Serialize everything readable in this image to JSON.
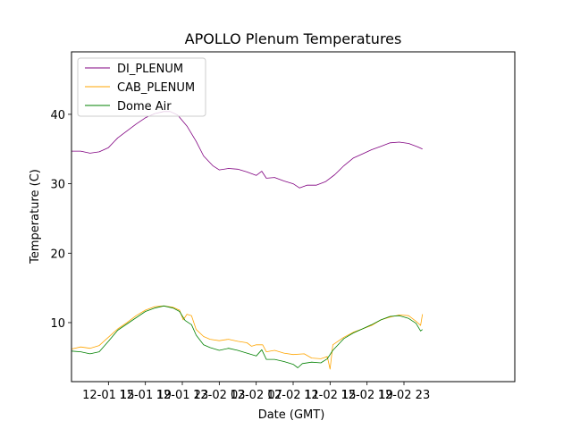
{
  "chart_data": {
    "type": "line",
    "title": "APOLLO Plenum Temperatures",
    "xlabel": "Date (GMT)",
    "ylabel": "Temperature (C)",
    "xlim": [
      11.0,
      59.0
    ],
    "ylim": [
      1.5,
      49.0
    ],
    "x_unit": "hours since 2021-12-01 00:00 GMT",
    "xticks": [
      {
        "value": 15,
        "label": "12-01 15"
      },
      {
        "value": 19,
        "label": "12-01 19"
      },
      {
        "value": 23,
        "label": "12-01 23"
      },
      {
        "value": 27,
        "label": "12-02 03"
      },
      {
        "value": 31,
        "label": "12-02 07"
      },
      {
        "value": 35,
        "label": "12-02 11"
      },
      {
        "value": 39,
        "label": "12-02 15"
      },
      {
        "value": 43,
        "label": "12-02 19"
      },
      {
        "value": 47,
        "label": "12-02 23"
      }
    ],
    "yticks": [
      {
        "value": 10,
        "label": "10"
      },
      {
        "value": 20,
        "label": "20"
      },
      {
        "value": 30,
        "label": "30"
      },
      {
        "value": 40,
        "label": "40"
      }
    ],
    "grid": false,
    "legend": {
      "position": "top-left"
    },
    "series": [
      {
        "name": "DI_PLENUM",
        "color": "#800080",
        "points": [
          [
            11,
            34.7
          ],
          [
            12,
            34.7
          ],
          [
            13,
            34.4
          ],
          [
            14,
            34.6
          ],
          [
            15,
            35.2
          ],
          [
            16,
            36.6
          ],
          [
            17,
            37.6
          ],
          [
            18,
            38.6
          ],
          [
            19,
            39.5
          ],
          [
            20,
            40.1
          ],
          [
            21,
            40.4
          ],
          [
            21.7,
            40.4
          ],
          [
            22.5,
            39.9
          ],
          [
            23.5,
            38.3
          ],
          [
            24.5,
            36.1
          ],
          [
            25.3,
            34.0
          ],
          [
            26.3,
            32.6
          ],
          [
            27,
            32.0
          ],
          [
            28,
            32.2
          ],
          [
            29,
            32.1
          ],
          [
            30,
            31.7
          ],
          [
            31,
            31.2
          ],
          [
            31.6,
            31.8
          ],
          [
            32.1,
            30.8
          ],
          [
            33,
            30.9
          ],
          [
            34,
            30.4
          ],
          [
            35,
            30.0
          ],
          [
            35.7,
            29.4
          ],
          [
            36.5,
            29.8
          ],
          [
            37.5,
            29.8
          ],
          [
            38.5,
            30.3
          ],
          [
            39.5,
            31.3
          ],
          [
            40.5,
            32.6
          ],
          [
            41.5,
            33.7
          ],
          [
            42.5,
            34.3
          ],
          [
            43.5,
            34.9
          ],
          [
            44.5,
            35.4
          ],
          [
            45.5,
            35.9
          ],
          [
            46.5,
            36.0
          ],
          [
            47.5,
            35.8
          ],
          [
            48.5,
            35.3
          ],
          [
            49,
            35.0
          ]
        ]
      },
      {
        "name": "CAB_PLENUM",
        "color": "#ffa500",
        "points": [
          [
            11,
            6.2
          ],
          [
            12,
            6.5
          ],
          [
            13,
            6.3
          ],
          [
            14,
            6.7
          ],
          [
            15,
            7.9
          ],
          [
            16,
            9.1
          ],
          [
            17,
            10.0
          ],
          [
            18,
            11.0
          ],
          [
            19,
            11.8
          ],
          [
            20,
            12.3
          ],
          [
            21,
            12.4
          ],
          [
            22,
            12.2
          ],
          [
            22.7,
            11.8
          ],
          [
            23.1,
            10.4
          ],
          [
            23.5,
            11.2
          ],
          [
            24,
            11.0
          ],
          [
            24.5,
            9.0
          ],
          [
            25.3,
            8.0
          ],
          [
            26,
            7.6
          ],
          [
            27,
            7.4
          ],
          [
            28,
            7.6
          ],
          [
            29,
            7.3
          ],
          [
            30,
            7.1
          ],
          [
            30.5,
            6.6
          ],
          [
            31,
            6.8
          ],
          [
            31.7,
            6.8
          ],
          [
            32.1,
            5.8
          ],
          [
            33,
            6.0
          ],
          [
            34,
            5.6
          ],
          [
            35,
            5.4
          ],
          [
            36.2,
            5.5
          ],
          [
            37,
            4.9
          ],
          [
            38,
            4.8
          ],
          [
            38.7,
            5.1
          ],
          [
            39,
            3.3
          ],
          [
            39.3,
            6.8
          ],
          [
            40.5,
            7.9
          ],
          [
            41.5,
            8.6
          ],
          [
            42.5,
            9.1
          ],
          [
            43.5,
            9.6
          ],
          [
            44.5,
            10.4
          ],
          [
            45.5,
            10.8
          ],
          [
            46.5,
            11.1
          ],
          [
            47.5,
            11.0
          ],
          [
            48.3,
            10.2
          ],
          [
            48.8,
            9.6
          ],
          [
            49,
            11.2
          ]
        ]
      },
      {
        "name": "Dome Air",
        "color": "#008000",
        "points": [
          [
            11,
            5.9
          ],
          [
            12,
            5.8
          ],
          [
            13,
            5.5
          ],
          [
            14,
            5.8
          ],
          [
            15,
            7.3
          ],
          [
            16,
            8.9
          ],
          [
            17,
            9.8
          ],
          [
            18,
            10.7
          ],
          [
            19,
            11.6
          ],
          [
            20,
            12.1
          ],
          [
            21,
            12.4
          ],
          [
            22,
            12.1
          ],
          [
            22.7,
            11.6
          ],
          [
            23.3,
            10.3
          ],
          [
            24,
            9.7
          ],
          [
            24.5,
            8.2
          ],
          [
            25.3,
            6.8
          ],
          [
            26,
            6.4
          ],
          [
            27,
            6.0
          ],
          [
            28,
            6.3
          ],
          [
            29,
            6.0
          ],
          [
            30,
            5.6
          ],
          [
            31,
            5.2
          ],
          [
            31.6,
            6.1
          ],
          [
            32.1,
            4.7
          ],
          [
            33,
            4.7
          ],
          [
            34,
            4.4
          ],
          [
            35,
            4.0
          ],
          [
            35.5,
            3.5
          ],
          [
            36,
            4.1
          ],
          [
            37,
            4.3
          ],
          [
            38,
            4.2
          ],
          [
            38.7,
            4.8
          ],
          [
            39.3,
            6.0
          ],
          [
            40.5,
            7.7
          ],
          [
            41.5,
            8.5
          ],
          [
            42.5,
            9.1
          ],
          [
            43.5,
            9.7
          ],
          [
            44.5,
            10.4
          ],
          [
            45.5,
            10.9
          ],
          [
            46.5,
            11.0
          ],
          [
            47.5,
            10.6
          ],
          [
            48.3,
            9.9
          ],
          [
            48.8,
            8.8
          ],
          [
            49,
            9.0
          ]
        ]
      }
    ]
  }
}
